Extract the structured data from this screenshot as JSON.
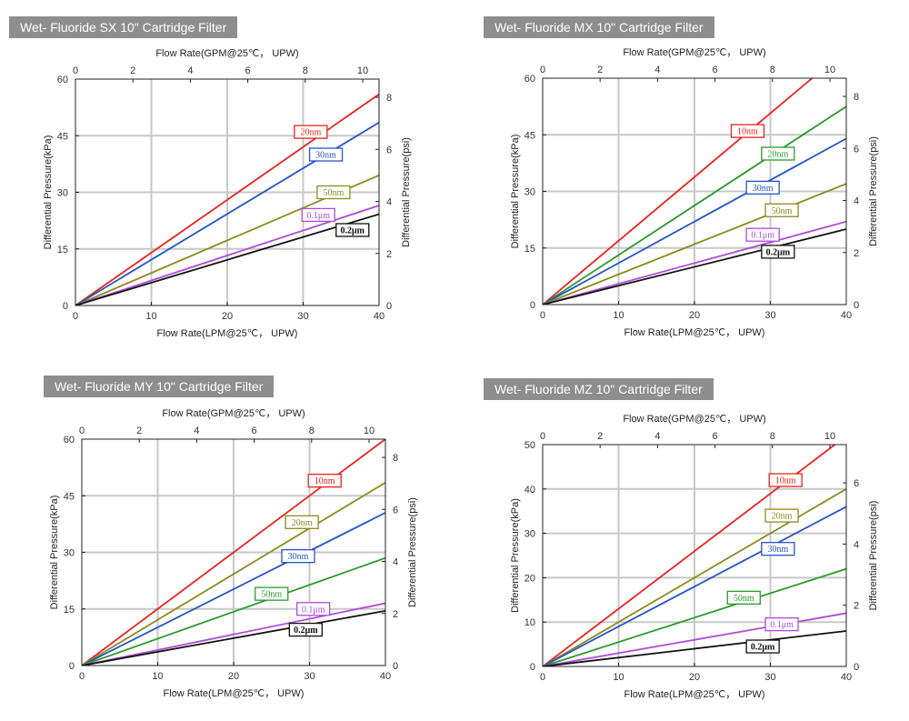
{
  "chart_data": [
    {
      "type": "line",
      "title": "Wet- Fluoride SX 10\" Cartridge Filter",
      "xlabel": "Flow Rate(LPM@25℃， UPW)",
      "x2label": "Flow Rate(GPM@25℃， UPW)",
      "ylabel": "Differential Pressure(kPa)",
      "y2label": "Differential Pressure(psi)",
      "xlim": [
        0,
        40
      ],
      "ylim": [
        0,
        60
      ],
      "x2lim": [
        0,
        10.57
      ],
      "y2lim": [
        0,
        8.7
      ],
      "xticks": [
        "0",
        "10",
        "20",
        "30",
        "40"
      ],
      "yticks": [
        "0",
        "15",
        "30",
        "45",
        "60"
      ],
      "x2ticks": [
        "0",
        "2",
        "4",
        "6",
        "8",
        "10"
      ],
      "y2ticks": [
        "0",
        "2",
        "4",
        "6",
        "8"
      ],
      "grid": true,
      "series": [
        {
          "name": "20nm",
          "color": "#e8231f",
          "x": [
            0,
            40
          ],
          "y": [
            0,
            56
          ],
          "label_at": [
            31,
            46
          ]
        },
        {
          "name": "30nm",
          "color": "#2554c7",
          "x": [
            0,
            40
          ],
          "y": [
            0,
            48.5
          ],
          "label_at": [
            33,
            40
          ]
        },
        {
          "name": "50nm",
          "color": "#8c8a1e",
          "x": [
            0,
            40
          ],
          "y": [
            0,
            34.5
          ],
          "label_at": [
            34,
            30
          ]
        },
        {
          "name": "0.1μm",
          "color": "#b04ad9",
          "x": [
            0,
            40
          ],
          "y": [
            0,
            26.5
          ],
          "label_at": [
            32,
            24
          ]
        },
        {
          "name": "0.2μm",
          "color": "#111111",
          "x": [
            0,
            40
          ],
          "y": [
            0,
            24.2
          ],
          "label_at": [
            36.5,
            20
          ],
          "bold": true
        }
      ]
    },
    {
      "type": "line",
      "title": "Wet- Fluoride MX 10\" Cartridge Filter",
      "xlabel": "Flow Rate(LPM@25℃， UPW)",
      "x2label": "Flow Rate(GPM@25℃， UPW)",
      "ylabel": "Differential Pressure(kPa)",
      "y2label": "Differential Pressure(psi)",
      "xlim": [
        0,
        40
      ],
      "ylim": [
        0,
        60
      ],
      "x2lim": [
        0,
        10.57
      ],
      "y2lim": [
        0,
        8.7
      ],
      "xticks": [
        "0",
        "10",
        "20",
        "30",
        "40"
      ],
      "yticks": [
        "0",
        "15",
        "30",
        "45",
        "60"
      ],
      "x2ticks": [
        "0",
        "2",
        "4",
        "6",
        "8",
        "10"
      ],
      "y2ticks": [
        "0",
        "2",
        "4",
        "6",
        "8"
      ],
      "grid": true,
      "series": [
        {
          "name": "10nm",
          "color": "#e8231f",
          "x": [
            0,
            35.5
          ],
          "y": [
            0,
            60
          ],
          "label_at": [
            27,
            46
          ]
        },
        {
          "name": "20nm",
          "color": "#2a9a2a",
          "x": [
            0,
            40
          ],
          "y": [
            0,
            52.5
          ],
          "label_at": [
            31,
            40
          ]
        },
        {
          "name": "30nm",
          "color": "#2554c7",
          "x": [
            0,
            40
          ],
          "y": [
            0,
            44
          ],
          "label_at": [
            29,
            31
          ]
        },
        {
          "name": "50nm",
          "color": "#8c8a1e",
          "x": [
            0,
            40
          ],
          "y": [
            0,
            32
          ],
          "label_at": [
            31.5,
            25
          ]
        },
        {
          "name": "0.1μm",
          "color": "#b04ad9",
          "x": [
            0,
            40
          ],
          "y": [
            0,
            22
          ],
          "label_at": [
            29,
            18.5
          ]
        },
        {
          "name": "0.2μm",
          "color": "#111111",
          "x": [
            0,
            40
          ],
          "y": [
            0,
            20
          ],
          "label_at": [
            31,
            14
          ],
          "bold": true
        }
      ]
    },
    {
      "type": "line",
      "title": "Wet- Fluoride MY 10\" Cartridge Filter",
      "xlabel": "Flow Rate(LPM@25℃， UPW)",
      "x2label": "Flow Rate(GPM@25℃， UPW)",
      "ylabel": "Differential Pressure(kPa)",
      "y2label": "Differential Pressure(psi)",
      "xlim": [
        0,
        40
      ],
      "ylim": [
        0,
        60
      ],
      "x2lim": [
        0,
        10.57
      ],
      "y2lim": [
        0,
        8.7
      ],
      "xticks": [
        "0",
        "10",
        "20",
        "30",
        "40"
      ],
      "yticks": [
        "0",
        "15",
        "30",
        "45",
        "60"
      ],
      "x2ticks": [
        "0",
        "2",
        "4",
        "6",
        "8",
        "10"
      ],
      "y2ticks": [
        "0",
        "2",
        "4",
        "6",
        "8"
      ],
      "grid": true,
      "series": [
        {
          "name": "10nm",
          "color": "#e8231f",
          "x": [
            0,
            40
          ],
          "y": [
            0,
            60
          ],
          "label_at": [
            32,
            49
          ]
        },
        {
          "name": "20nm",
          "color": "#8c8a1e",
          "x": [
            0,
            40
          ],
          "y": [
            0,
            48.5
          ],
          "label_at": [
            29,
            38
          ]
        },
        {
          "name": "30nm",
          "color": "#2554c7",
          "x": [
            0,
            40
          ],
          "y": [
            0,
            40.5
          ],
          "label_at": [
            28.5,
            29
          ]
        },
        {
          "name": "50nm",
          "color": "#2a9a2a",
          "x": [
            0,
            40
          ],
          "y": [
            0,
            28.5
          ],
          "label_at": [
            25,
            19
          ]
        },
        {
          "name": "0.1μm",
          "color": "#b04ad9",
          "x": [
            0,
            40
          ],
          "y": [
            0,
            16.5
          ],
          "label_at": [
            30.5,
            15
          ]
        },
        {
          "name": "0.2μm",
          "color": "#111111",
          "x": [
            0,
            40
          ],
          "y": [
            0,
            14.5
          ],
          "label_at": [
            29.5,
            9.5
          ],
          "bold": true
        }
      ]
    },
    {
      "type": "line",
      "title": "Wet- Fluoride MZ 10\" Cartridge Filter",
      "xlabel": "Flow Rate(LPM@25℃， UPW)",
      "x2label": "Flow Rate(GPM@25℃， UPW)",
      "ylabel": "Differential Pressure(kPa)",
      "y2label": "Differential Pressure(psi)",
      "xlim": [
        0,
        40
      ],
      "ylim": [
        0,
        50
      ],
      "x2lim": [
        0,
        10.57
      ],
      "y2lim": [
        0,
        7.25
      ],
      "xticks": [
        "0",
        "10",
        "20",
        "30",
        "40"
      ],
      "yticks": [
        "0",
        "10",
        "20",
        "30",
        "40",
        "50"
      ],
      "x2ticks": [
        "0",
        "2",
        "4",
        "6",
        "8",
        "10"
      ],
      "y2ticks": [
        "0",
        "2",
        "4",
        "6"
      ],
      "grid": true,
      "series": [
        {
          "name": "10nm",
          "color": "#e8231f",
          "x": [
            0,
            38.5
          ],
          "y": [
            0,
            50
          ],
          "label_at": [
            32,
            42
          ]
        },
        {
          "name": "20nm",
          "color": "#8c8a1e",
          "x": [
            0,
            40
          ],
          "y": [
            0,
            40
          ],
          "label_at": [
            31.5,
            34
          ]
        },
        {
          "name": "30nm",
          "color": "#2554c7",
          "x": [
            0,
            40
          ],
          "y": [
            0,
            36
          ],
          "label_at": [
            31,
            26.5
          ]
        },
        {
          "name": "50nm",
          "color": "#2a9a2a",
          "x": [
            0,
            40
          ],
          "y": [
            0,
            22
          ],
          "label_at": [
            26.5,
            15.5
          ]
        },
        {
          "name": "0.1μm",
          "color": "#b04ad9",
          "x": [
            0,
            40
          ],
          "y": [
            0,
            12
          ],
          "label_at": [
            31.5,
            9.5
          ]
        },
        {
          "name": "0.2μm",
          "color": "#111111",
          "x": [
            0,
            40
          ],
          "y": [
            0,
            8
          ],
          "label_at": [
            29,
            4.5
          ],
          "bold": true
        }
      ]
    }
  ]
}
